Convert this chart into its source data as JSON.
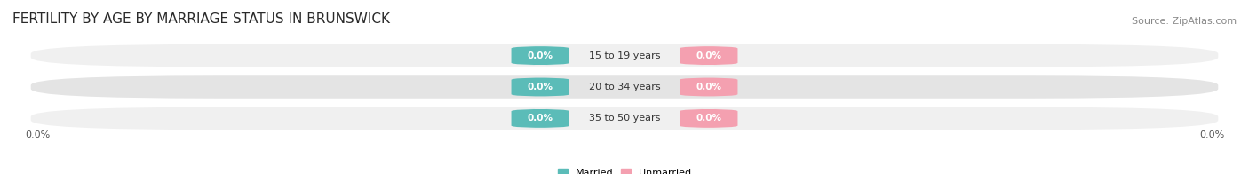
{
  "title": "FERTILITY BY AGE BY MARRIAGE STATUS IN BRUNSWICK",
  "source": "Source: ZipAtlas.com",
  "categories": [
    "15 to 19 years",
    "20 to 34 years",
    "35 to 50 years"
  ],
  "married_values": [
    0.0,
    0.0,
    0.0
  ],
  "unmarried_values": [
    0.0,
    0.0,
    0.0
  ],
  "married_color": "#5bbcb8",
  "unmarried_color": "#f4a0b0",
  "row_bg_color_light": "#f0f0f0",
  "row_bg_color_dark": "#e4e4e4",
  "title_fontsize": 11,
  "source_fontsize": 8,
  "bar_label_fontsize": 7.5,
  "cat_label_fontsize": 8,
  "axis_val_fontsize": 8,
  "axis_label_value": "0.0%",
  "background_color": "#ffffff",
  "legend_married": "Married",
  "legend_unmarried": "Unmarried"
}
